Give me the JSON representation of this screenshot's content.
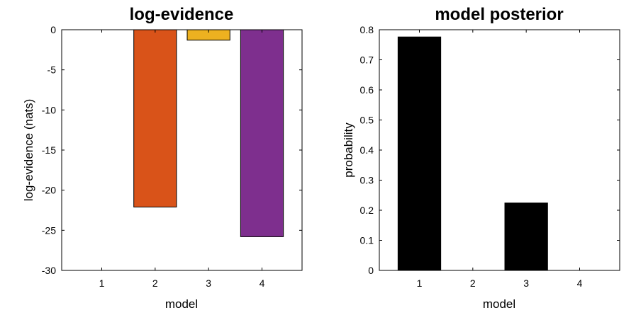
{
  "chart_data": [
    {
      "type": "bar",
      "title": "log-evidence",
      "xlabel": "model",
      "ylabel": "log-evidence (nats)",
      "categories": [
        "1",
        "2",
        "3",
        "4"
      ],
      "values": [
        0,
        -22.1,
        -1.3,
        -25.8
      ],
      "bar_colors": [
        "#0072BD",
        "#D95319",
        "#EDB120",
        "#7E2F8E"
      ],
      "ylim": [
        -30,
        0
      ],
      "yticks": [
        0,
        -5,
        -10,
        -15,
        -20,
        -25,
        -30
      ],
      "ytick_labels": [
        "0",
        "-5",
        "-10",
        "-15",
        "-20",
        "-25",
        "-30"
      ],
      "grid": false,
      "legend": false
    },
    {
      "type": "bar",
      "title": "model posterior",
      "xlabel": "model",
      "ylabel": "probability",
      "categories": [
        "1",
        "2",
        "3",
        "4"
      ],
      "values": [
        0.776,
        0,
        0.224,
        0
      ],
      "bar_colors": [
        "#000000",
        "#000000",
        "#000000",
        "#000000"
      ],
      "ylim": [
        0,
        0.8
      ],
      "yticks": [
        0,
        0.1,
        0.2,
        0.3,
        0.4,
        0.5,
        0.6,
        0.7,
        0.8
      ],
      "ytick_labels": [
        "0",
        "0.1",
        "0.2",
        "0.3",
        "0.4",
        "0.5",
        "0.6",
        "0.7",
        "0.8"
      ],
      "grid": false,
      "legend": false
    }
  ]
}
